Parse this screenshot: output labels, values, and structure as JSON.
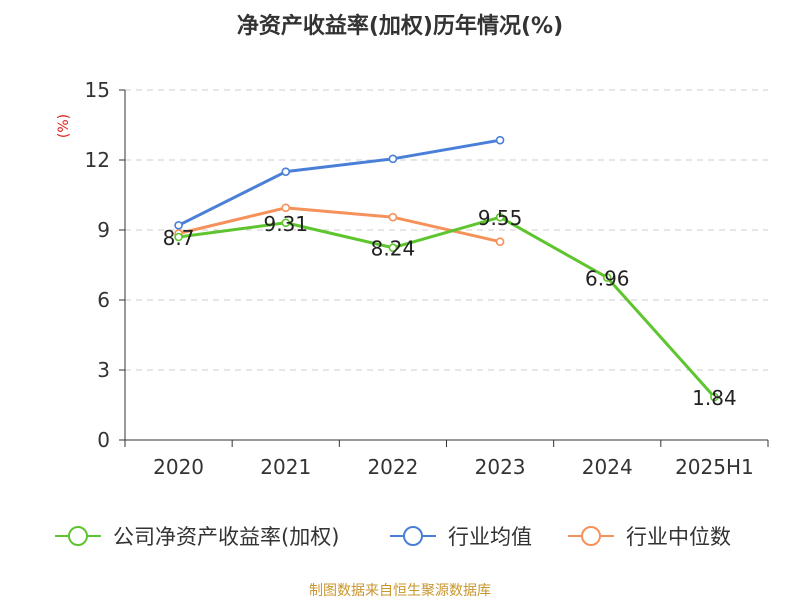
{
  "chart_data": {
    "type": "line",
    "title": "净资产收益率(加权)历年情况(%)",
    "ylabel": "(%)",
    "categories": [
      "2020",
      "2021",
      "2022",
      "2023",
      "2024",
      "2025H1"
    ],
    "ylim": [
      0,
      15
    ],
    "yticks": [
      0,
      3,
      6,
      9,
      12,
      15
    ],
    "grid": true,
    "legend_position": "bottom",
    "series": [
      {
        "name": "公司净资产收益率(加权)",
        "color": "#5fc52e",
        "values": [
          8.7,
          9.31,
          8.24,
          9.55,
          6.96,
          1.84
        ],
        "labels": [
          "8.7",
          "9.31",
          "8.24",
          "9.55",
          "6.96",
          "1.84"
        ]
      },
      {
        "name": "行业均值",
        "color": "#4a7fd8",
        "values": [
          9.2,
          11.5,
          12.05,
          12.85,
          null,
          null
        ]
      },
      {
        "name": "行业中位数",
        "color": "#f5915a",
        "values": [
          8.85,
          9.95,
          9.55,
          8.5,
          null,
          null
        ]
      }
    ],
    "footer": "制图数据来自恒生聚源数据库"
  }
}
